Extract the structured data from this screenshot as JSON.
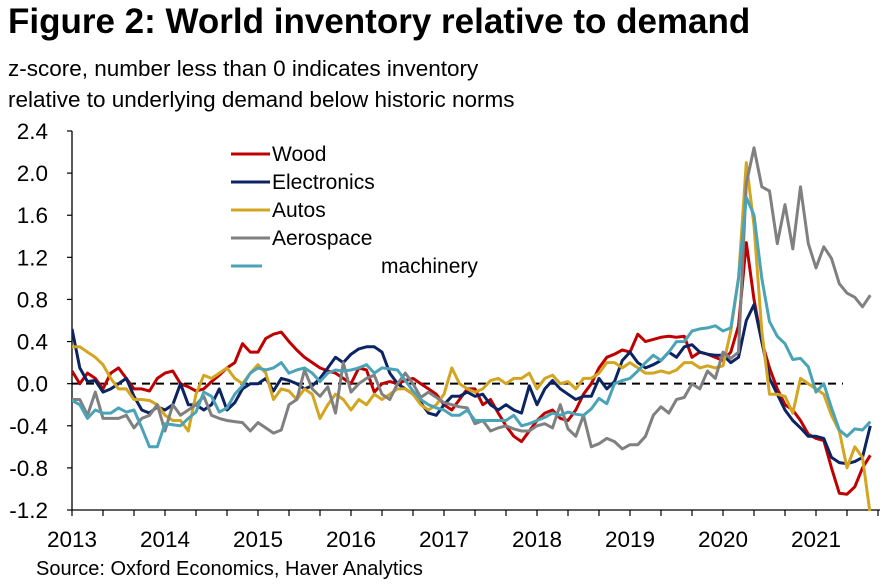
{
  "title": "Figure 2: World inventory relative to demand",
  "subtitle_lines": [
    "z-score, number less than 0 indicates inventory",
    "relative to underlying demand below historic norms"
  ],
  "source": "Source: Oxford Economics, Haver Analytics",
  "chart_data": {
    "type": "line",
    "title": "Figure 2: World inventory relative to demand",
    "ylabel": "",
    "xlabel": "",
    "frequency": "monthly",
    "x_start": "2013-01",
    "x_end": "2021-08",
    "ylim": [
      -1.2,
      2.4
    ],
    "yticks": [
      "2.4",
      "2.0",
      "1.6",
      "1.2",
      "0.8",
      "0.4",
      "0.0",
      "-0.4",
      "-0.8",
      "-1.2"
    ],
    "xticks": [
      "2013",
      "2014",
      "2015",
      "2016",
      "2017",
      "2018",
      "2019",
      "2020",
      "2021"
    ],
    "grid": false,
    "reference_line": {
      "y": 0,
      "style": "dashed"
    },
    "legend_position": "top-center",
    "series": [
      {
        "name": "Wood",
        "color": "#C00000",
        "values": [
          0.12,
          0.0,
          0.1,
          0.05,
          -0.05,
          0.1,
          0.15,
          0.05,
          -0.05,
          -0.05,
          -0.07,
          0.05,
          0.1,
          0.12,
          0.0,
          -0.03,
          -0.07,
          -0.05,
          0.02,
          0.08,
          0.15,
          0.2,
          0.38,
          0.3,
          0.3,
          0.43,
          0.47,
          0.49,
          0.4,
          0.32,
          0.25,
          0.2,
          0.15,
          0.12,
          0.1,
          0.05,
          0.0,
          0.15,
          0.13,
          -0.08,
          0.0,
          0.02,
          0.0,
          0.03,
          0.05,
          0.0,
          -0.05,
          -0.1,
          -0.2,
          -0.25,
          -0.15,
          -0.05,
          -0.05,
          -0.2,
          -0.15,
          -0.28,
          -0.4,
          -0.5,
          -0.55,
          -0.45,
          -0.35,
          -0.28,
          -0.25,
          -0.33,
          -0.35,
          -0.25,
          -0.1,
          0.0,
          0.15,
          0.25,
          0.28,
          0.32,
          0.3,
          0.47,
          0.4,
          0.42,
          0.44,
          0.45,
          0.44,
          0.45,
          0.25,
          0.3,
          0.28,
          0.25,
          0.22,
          0.3,
          0.55,
          1.34,
          0.8,
          0.4,
          0.15,
          -0.05,
          -0.2,
          -0.25,
          -0.35,
          -0.48,
          -0.52,
          -0.54,
          -0.8,
          -1.04,
          -1.05,
          -0.98,
          -0.8,
          -0.68
        ]
      },
      {
        "name": "Electronics",
        "color": "#0C2461",
        "values": [
          0.52,
          0.15,
          0.02,
          0.03,
          -0.08,
          -0.05,
          0.0,
          0.05,
          -0.12,
          -0.25,
          -0.28,
          -0.22,
          -0.25,
          -0.2,
          0.0,
          -0.2,
          -0.2,
          -0.25,
          -0.2,
          -0.05,
          -0.25,
          -0.18,
          -0.05,
          0.0,
          0.0,
          0.05,
          -0.07,
          0.05,
          0.03,
          0.0,
          -0.05,
          -0.02,
          0.05,
          0.15,
          0.25,
          0.2,
          0.28,
          0.33,
          0.35,
          0.35,
          0.3,
          0.1,
          0.0,
          -0.05,
          -0.1,
          -0.18,
          -0.28,
          -0.3,
          -0.2,
          -0.12,
          -0.12,
          -0.08,
          -0.12,
          -0.1,
          -0.2,
          -0.25,
          -0.2,
          -0.25,
          -0.28,
          -0.02,
          -0.2,
          -0.05,
          0.03,
          -0.05,
          -0.1,
          -0.15,
          -0.12,
          -0.12,
          0.05,
          -0.05,
          0.02,
          0.22,
          0.3,
          0.2,
          0.15,
          0.18,
          0.22,
          0.3,
          0.25,
          0.35,
          0.37,
          0.3,
          0.28,
          0.27,
          0.27,
          0.2,
          0.25,
          0.6,
          0.75,
          0.4,
          0.05,
          -0.1,
          -0.25,
          -0.35,
          -0.42,
          -0.5,
          -0.5,
          -0.52,
          -0.7,
          -0.75,
          -0.76,
          -0.74,
          -0.7,
          -0.4
        ]
      },
      {
        "name": "Autos",
        "color": "#D4A520",
        "values": [
          0.35,
          0.35,
          0.3,
          0.25,
          0.18,
          0.05,
          -0.05,
          -0.05,
          -0.15,
          -0.15,
          -0.16,
          -0.2,
          -0.3,
          -0.35,
          -0.35,
          -0.45,
          -0.1,
          0.08,
          0.05,
          0.1,
          0.15,
          0.05,
          0.0,
          0.1,
          0.18,
          0.1,
          -0.15,
          -0.05,
          -0.07,
          -0.15,
          -0.05,
          -0.1,
          -0.33,
          -0.2,
          -0.1,
          -0.15,
          -0.25,
          -0.15,
          -0.2,
          -0.1,
          -0.15,
          -0.1,
          -0.05,
          -0.05,
          -0.1,
          -0.2,
          -0.25,
          -0.2,
          -0.1,
          0.15,
          0.0,
          -0.05,
          -0.08,
          -0.05,
          0.03,
          0.05,
          0.0,
          0.05,
          0.05,
          0.1,
          -0.05,
          0.05,
          0.08,
          0.0,
          0.02,
          -0.05,
          0.05,
          0.05,
          0.1,
          0.2,
          0.2,
          0.15,
          0.2,
          0.15,
          0.1,
          0.1,
          0.12,
          0.1,
          0.13,
          0.2,
          0.2,
          0.15,
          0.17,
          0.15,
          0.17,
          0.5,
          1.0,
          2.1,
          1.5,
          0.5,
          -0.1,
          -0.1,
          -0.12,
          -0.28,
          0.05,
          0.0,
          -0.05,
          -0.1,
          -0.3,
          -0.45,
          -0.8,
          -0.6,
          -0.7,
          -1.25
        ]
      },
      {
        "name": "Aerospace",
        "color": "#808080",
        "values": [
          -0.15,
          -0.15,
          -0.3,
          -0.08,
          -0.33,
          -0.33,
          -0.33,
          -0.3,
          -0.42,
          -0.33,
          -0.3,
          -0.2,
          -0.45,
          -0.2,
          -0.3,
          -0.25,
          -0.2,
          -0.12,
          -0.3,
          -0.33,
          -0.35,
          -0.36,
          -0.37,
          -0.45,
          -0.37,
          -0.42,
          -0.47,
          -0.44,
          -0.2,
          -0.15,
          0.13,
          -0.05,
          -0.12,
          -0.03,
          -0.28,
          0.2,
          -0.08,
          0.0,
          0.05,
          0.08,
          -0.1,
          -0.15,
          0.0,
          0.1,
          0.0,
          -0.13,
          -0.08,
          -0.13,
          -0.18,
          -0.2,
          -0.22,
          -0.23,
          -0.38,
          -0.35,
          -0.45,
          -0.42,
          -0.4,
          -0.43,
          -0.45,
          -0.45,
          -0.4,
          -0.38,
          -0.42,
          -0.2,
          -0.43,
          -0.5,
          -0.3,
          -0.6,
          -0.57,
          -0.52,
          -0.55,
          -0.62,
          -0.58,
          -0.58,
          -0.5,
          -0.3,
          -0.22,
          -0.28,
          -0.15,
          -0.13,
          0.0,
          -0.05,
          0.12,
          0.05,
          0.3,
          0.24,
          0.3,
          1.9,
          2.24,
          1.87,
          1.83,
          1.33,
          1.7,
          1.28,
          1.87,
          1.33,
          1.1,
          1.3,
          1.19,
          0.95,
          0.86,
          0.82,
          0.73,
          0.84
        ]
      },
      {
        "name": "machinery",
        "color": "#4BA3B8",
        "values": [
          -0.16,
          -0.2,
          -0.33,
          -0.25,
          -0.28,
          -0.28,
          -0.23,
          -0.27,
          -0.25,
          -0.42,
          -0.6,
          -0.6,
          -0.38,
          -0.39,
          -0.4,
          -0.33,
          -0.27,
          -0.08,
          -0.12,
          -0.27,
          -0.23,
          -0.1,
          -0.02,
          0.1,
          0.15,
          0.13,
          0.15,
          0.2,
          0.1,
          0.13,
          0.15,
          0.1,
          0.02,
          0.1,
          0.13,
          0.12,
          0.13,
          0.15,
          0.18,
          0.1,
          0.15,
          0.14,
          0.13,
          0.03,
          -0.07,
          -0.15,
          -0.2,
          -0.23,
          -0.25,
          -0.3,
          -0.3,
          -0.25,
          -0.35,
          -0.35,
          -0.35,
          -0.35,
          -0.35,
          -0.3,
          -0.4,
          -0.38,
          -0.35,
          -0.32,
          -0.28,
          -0.3,
          -0.27,
          -0.29,
          -0.3,
          -0.24,
          -0.14,
          -0.19,
          0.0,
          0.03,
          0.05,
          0.12,
          0.2,
          0.27,
          0.22,
          0.3,
          0.4,
          0.4,
          0.5,
          0.52,
          0.53,
          0.55,
          0.5,
          0.53,
          1.0,
          1.77,
          1.6,
          1.0,
          0.59,
          0.45,
          0.38,
          0.23,
          0.24,
          0.16,
          -0.08,
          0.0,
          -0.23,
          -0.44,
          -0.5,
          -0.43,
          -0.44,
          -0.36
        ]
      }
    ]
  }
}
